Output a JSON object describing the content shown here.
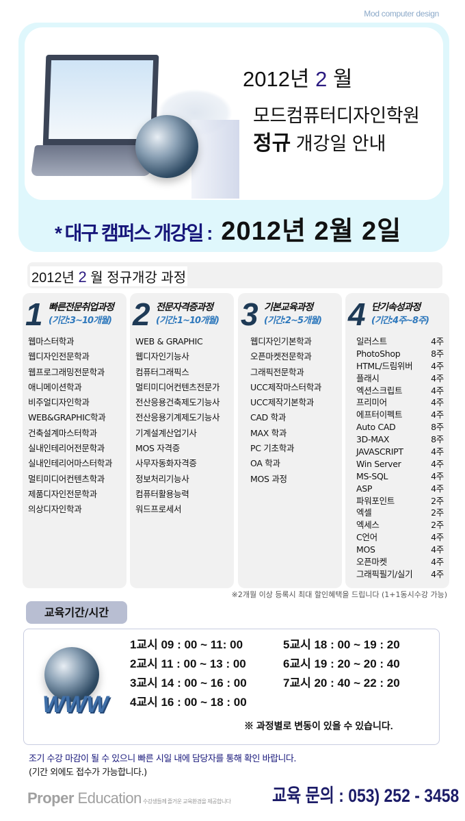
{
  "brand": "Mod computer design",
  "hero": {
    "year": "2012년",
    "month": "2",
    "month_suffix": "월",
    "school": "모드컴퓨터디자인학원",
    "subtitle_bold": "정규",
    "subtitle_rest": "개강일 안내",
    "opening_label": "* 대구 캠퍼스 개강일 :",
    "opening_date": "2012년  2월  2일"
  },
  "section": {
    "year": "2012년",
    "month": "2",
    "rest": "월 정규개강 과정"
  },
  "courses": [
    {
      "num": "1",
      "title": "빠른전문취업과정",
      "period": "(기간:3~10개월)",
      "items": [
        "웹마스터학과",
        "웹디자인전문학과",
        "웹프로그래밍전문학과",
        "애니메이션학과",
        "비주얼디자인학과",
        "WEB&GRAPHIC학과",
        "건축설계마스터학과",
        "실내인테리어전문학과",
        "실내인테리어마스터학과",
        "멀티미디어컨텐츠학과",
        "제품디자인전문학과",
        "의상디자인학과"
      ]
    },
    {
      "num": "2",
      "title": "전문자격증과정",
      "period": "(기간:1~10개월)",
      "items": [
        "WEB & GRAPHIC",
        "웹디자인기능사",
        "컴퓨터그래픽스",
        "멀티미디어컨텐츠전문가",
        "전산응용건축제도기능사",
        "전산응용기계제도기능사",
        "기계설계산업기사",
        "MOS 자격증",
        "사무자동화자격증",
        "정보처리기능사",
        "컴퓨터활용능력",
        "워드프로세서"
      ]
    },
    {
      "num": "3",
      "title": "기본교육과정",
      "period": "(기간:2~5개월)",
      "items": [
        "웹디자인기본학과",
        "오픈마켓전문학과",
        "그래픽전문학과",
        "UCC제작마스터학과",
        "UCC제작기본학과",
        "CAD 학과",
        "MAX 학과",
        "PC 기초학과",
        "OA 학과",
        "MOS 과정"
      ]
    },
    {
      "num": "4",
      "title": "단기속성과정",
      "period": "(기간:4주~8주)",
      "items": [
        {
          "name": "일러스트",
          "weeks": "4주"
        },
        {
          "name": "PhotoShop",
          "weeks": "8주"
        },
        {
          "name": "HTML/드림위버",
          "weeks": "4주"
        },
        {
          "name": "플래시",
          "weeks": "4주"
        },
        {
          "name": "엑션스크립트",
          "weeks": "4주"
        },
        {
          "name": "프리미어",
          "weeks": "4주"
        },
        {
          "name": "에프터이펙트",
          "weeks": "4주"
        },
        {
          "name": "Auto CAD",
          "weeks": "8주"
        },
        {
          "name": "3D-MAX",
          "weeks": "8주"
        },
        {
          "name": "JAVASCRIPT",
          "weeks": "4주"
        },
        {
          "name": "Win Server",
          "weeks": "4주"
        },
        {
          "name": "MS-SQL",
          "weeks": "4주"
        },
        {
          "name": "ASP",
          "weeks": "4주"
        },
        {
          "name": "파워포인트",
          "weeks": "2주"
        },
        {
          "name": "엑셀",
          "weeks": "2주"
        },
        {
          "name": "엑세스",
          "weeks": "2주"
        },
        {
          "name": "C언어",
          "weeks": "4주"
        },
        {
          "name": "MOS",
          "weeks": "4주"
        },
        {
          "name": "오픈마켓",
          "weeks": "4주"
        },
        {
          "name": "그래픽필기/실기",
          "weeks": "4주"
        }
      ]
    }
  ],
  "discount_note": "※2개월 이상 등록시 최대 할인혜택을 드립니다 (1+1동시수강 가능)",
  "schedule": {
    "title": "교육기간/시간",
    "rows": [
      [
        "1교시   09 : 00 ~ 11: 00",
        "5교시  18 : 00 ~ 19 : 20"
      ],
      [
        "2교시  11 : 00 ~ 13 : 00",
        "6교시  19 : 20 ~ 20 : 40"
      ],
      [
        "3교시  14 : 00 ~ 16 : 00",
        "7교시  20 : 40 ~ 22 : 20"
      ],
      [
        "4교시  16 : 00 ~ 18 : 00",
        ""
      ]
    ],
    "note": "※ 과정별로 변동이 있을 수 있습니다.",
    "logo_text": "WWW"
  },
  "footer": {
    "line1": "조기 수강 마감이 될 수 있으니 빠른 시일 내에 담당자를 통해 확인 바랍니다.",
    "line2": "(기간 외에도 접수가 가능합니다.)",
    "logo_bold": "Proper",
    "logo_rest": " Education",
    "logo_tagline": "수강생들께 즐거운 교육환경을 제공합니다",
    "contact": "교육 문의 : 053) 252 - 3458"
  },
  "colors": {
    "accent_navy": "#16167a",
    "hero_bg": "#dff7fc",
    "period_blue": "#2e78bc",
    "panel_gray": "#f1f1f1",
    "badge": "#b8bed2"
  }
}
